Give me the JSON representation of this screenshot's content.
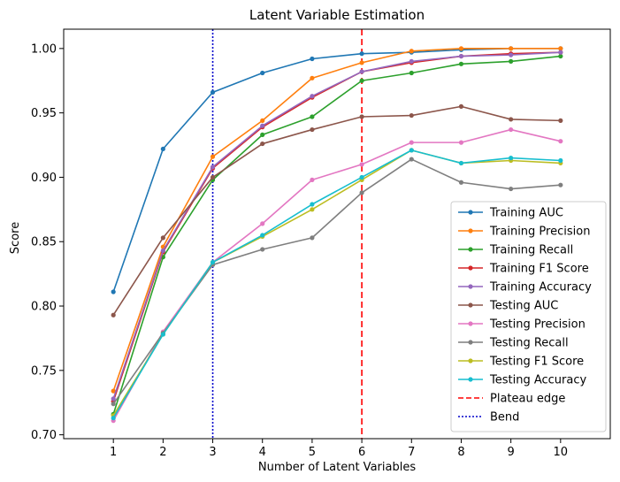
{
  "chart_data": {
    "type": "line",
    "title": "Latent Variable Estimation",
    "xlabel": "Number of Latent Variables",
    "ylabel": "Score",
    "xlim": [
      0,
      11
    ],
    "ylim": [
      0.697,
      1.015
    ],
    "x": [
      1,
      2,
      3,
      4,
      5,
      6,
      7,
      8,
      9,
      10
    ],
    "x_ticks": [
      1,
      2,
      3,
      4,
      5,
      6,
      7,
      8,
      9,
      10
    ],
    "y_ticks": [
      0.7,
      0.75,
      0.8,
      0.85,
      0.9,
      0.95,
      1.0
    ],
    "y_tick_labels": [
      "0.70",
      "0.75",
      "0.80",
      "0.85",
      "0.90",
      "0.95",
      "1.00"
    ],
    "grid": false,
    "legend_position": "lower-right",
    "series": [
      {
        "name": "Training AUC",
        "color": "#1f77b4",
        "values": [
          0.811,
          0.922,
          0.966,
          0.981,
          0.992,
          0.996,
          0.997,
          0.999,
          1.0,
          1.0
        ]
      },
      {
        "name": "Training Precision",
        "color": "#ff7f0e",
        "values": [
          0.734,
          0.846,
          0.916,
          0.944,
          0.977,
          0.989,
          0.998,
          1.0,
          1.0,
          1.0
        ]
      },
      {
        "name": "Training Recall",
        "color": "#2ca02c",
        "values": [
          0.716,
          0.838,
          0.898,
          0.933,
          0.947,
          0.975,
          0.981,
          0.988,
          0.99,
          0.994
        ]
      },
      {
        "name": "Training F1 Score",
        "color": "#d62728",
        "values": [
          0.726,
          0.842,
          0.907,
          0.939,
          0.962,
          0.982,
          0.989,
          0.994,
          0.996,
          0.997
        ]
      },
      {
        "name": "Training Accuracy",
        "color": "#9467bd",
        "values": [
          0.728,
          0.843,
          0.908,
          0.94,
          0.963,
          0.982,
          0.99,
          0.994,
          0.995,
          0.997
        ]
      },
      {
        "name": "Testing AUC",
        "color": "#8c564b",
        "values": [
          0.793,
          0.853,
          0.9,
          0.926,
          0.937,
          0.947,
          0.948,
          0.955,
          0.945,
          0.944
        ]
      },
      {
        "name": "Testing Precision",
        "color": "#e377c2",
        "values": [
          0.711,
          0.78,
          0.834,
          0.864,
          0.898,
          0.91,
          0.927,
          0.927,
          0.937,
          0.928
        ]
      },
      {
        "name": "Testing Recall",
        "color": "#7f7f7f",
        "values": [
          0.724,
          0.779,
          0.832,
          0.844,
          0.853,
          0.888,
          0.914,
          0.896,
          0.891,
          0.894
        ]
      },
      {
        "name": "Testing F1 Score",
        "color": "#bcbd22",
        "values": [
          0.715,
          0.778,
          0.834,
          0.854,
          0.875,
          0.898,
          0.921,
          0.911,
          0.913,
          0.911
        ]
      },
      {
        "name": "Testing Accuracy",
        "color": "#17becf",
        "values": [
          0.713,
          0.778,
          0.834,
          0.855,
          0.879,
          0.9,
          0.921,
          0.911,
          0.915,
          0.913
        ]
      }
    ],
    "reference_lines": [
      {
        "name": "Plateau edge",
        "x": 6,
        "color": "#ff0000",
        "style": "dashed"
      },
      {
        "name": "Bend",
        "x": 3,
        "color": "#0000cc",
        "style": "dotted"
      }
    ]
  }
}
